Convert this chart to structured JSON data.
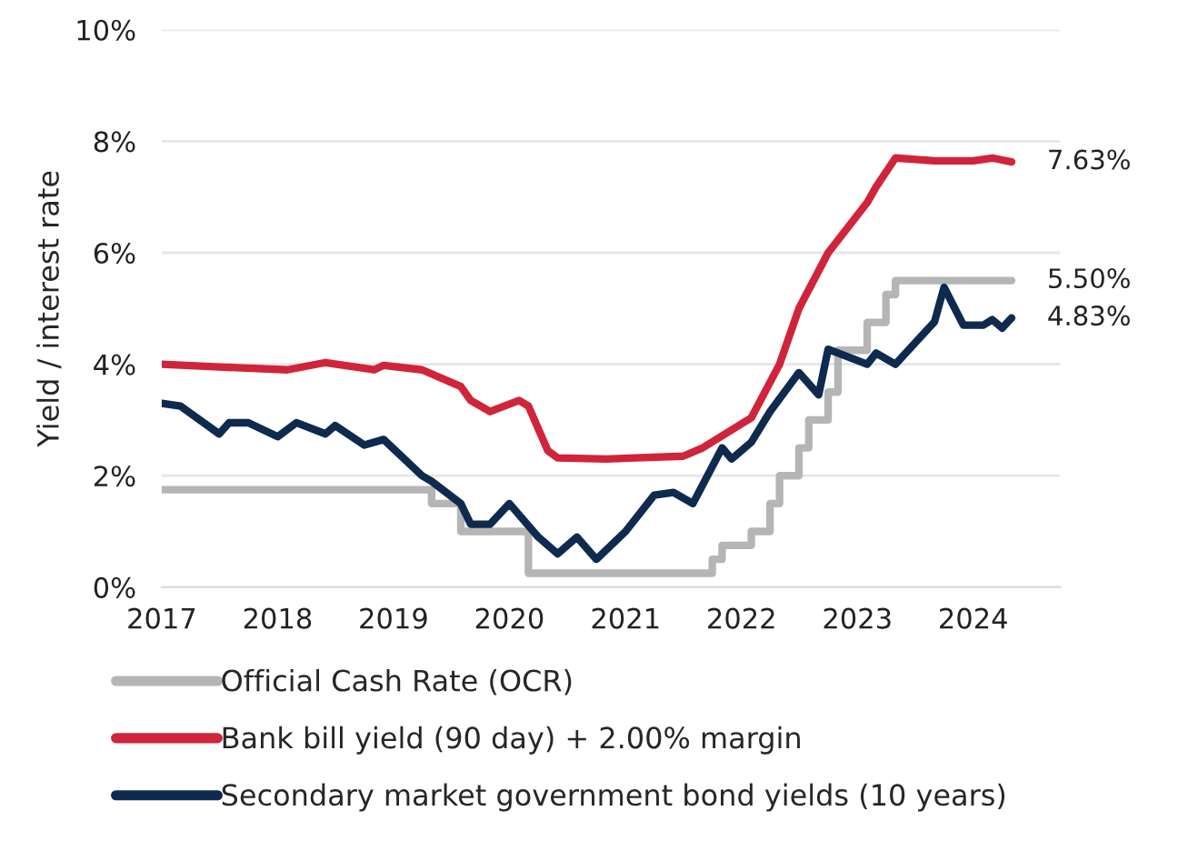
{
  "chart_data": {
    "type": "line",
    "ylabel": "Yield / interest rate",
    "xlim": [
      "2017-01",
      "2024-10"
    ],
    "ylim": [
      0,
      10
    ],
    "xticks": [
      "2017",
      "2018",
      "2019",
      "2020",
      "2021",
      "2022",
      "2023",
      "2024"
    ],
    "yticks": [
      {
        "value": 0,
        "label": "0%"
      },
      {
        "value": 2,
        "label": "2%"
      },
      {
        "value": 4,
        "label": "4%"
      },
      {
        "value": 6,
        "label": "6%"
      },
      {
        "value": 8,
        "label": "8%"
      },
      {
        "value": 10,
        "label": "10%"
      }
    ],
    "grid": "y",
    "legend": "bottom",
    "line_style": "solid",
    "marker": "none",
    "series": [
      {
        "name": "Official Cash Rate (OCR)",
        "type": "step",
        "color": "#b5b5b5",
        "x": [
          "2017-01",
          "2019-05",
          "2019-08",
          "2020-03",
          "2021-10",
          "2021-11",
          "2022-02",
          "2022-04",
          "2022-05",
          "2022-07",
          "2022-08",
          "2022-10",
          "2022-11",
          "2023-02",
          "2023-04",
          "2023-05",
          "2024-05"
        ],
        "values": [
          1.75,
          1.5,
          1.0,
          0.25,
          0.5,
          0.75,
          1.0,
          1.5,
          2.0,
          2.5,
          3.0,
          3.5,
          4.25,
          4.75,
          5.25,
          5.5,
          5.5
        ]
      },
      {
        "name": "Bank bill yield (90 day) + 2.00% margin",
        "color": "#d0243a",
        "x": [
          "2017-01",
          "2017-07",
          "2018-02",
          "2018-06",
          "2018-11",
          "2018-12",
          "2019-04",
          "2019-08",
          "2019-09",
          "2019-11",
          "2020-02",
          "2020-03",
          "2020-05",
          "2020-06",
          "2020-11",
          "2021-02",
          "2021-07",
          "2021-09",
          "2022-02",
          "2022-05",
          "2022-07",
          "2022-10",
          "2023-02",
          "2023-03",
          "2023-05",
          "2023-09",
          "2024-01",
          "2024-03",
          "2024-05"
        ],
        "values": [
          4.0,
          3.95,
          3.9,
          4.03,
          3.9,
          3.98,
          3.9,
          3.6,
          3.35,
          3.15,
          3.35,
          3.25,
          2.45,
          2.32,
          2.3,
          2.32,
          2.35,
          2.5,
          3.04,
          4.0,
          5.0,
          6.0,
          6.9,
          7.18,
          7.7,
          7.65,
          7.65,
          7.7,
          7.63
        ]
      },
      {
        "name": "Secondary market government bond yields (10 years)",
        "color": "#0e2a4f",
        "x": [
          "2017-01",
          "2017-03",
          "2017-07",
          "2017-08",
          "2017-10",
          "2018-01",
          "2018-03",
          "2018-06",
          "2018-07",
          "2018-10",
          "2018-12",
          "2019-04",
          "2019-05",
          "2019-08",
          "2019-09",
          "2019-11",
          "2020-01",
          "2020-04",
          "2020-06",
          "2020-08",
          "2020-10",
          "2021-01",
          "2021-04",
          "2021-06",
          "2021-08",
          "2021-11",
          "2021-12",
          "2022-02",
          "2022-04",
          "2022-07",
          "2022-09",
          "2022-10",
          "2023-02",
          "2023-03",
          "2023-05",
          "2023-09",
          "2023-10",
          "2023-12",
          "2024-02",
          "2024-03",
          "2024-04",
          "2024-05"
        ],
        "values": [
          3.3,
          3.25,
          2.75,
          2.95,
          2.95,
          2.7,
          2.95,
          2.75,
          2.9,
          2.55,
          2.65,
          2.0,
          1.9,
          1.5,
          1.13,
          1.13,
          1.5,
          0.9,
          0.6,
          0.9,
          0.5,
          1.0,
          1.65,
          1.7,
          1.5,
          2.5,
          2.3,
          2.6,
          3.15,
          3.85,
          3.45,
          4.27,
          4.0,
          4.2,
          4.0,
          4.76,
          5.38,
          4.7,
          4.7,
          4.8,
          4.65,
          4.83
        ]
      }
    ],
    "annotations": [
      {
        "text": "7.63%",
        "x": "2024-05",
        "y": 7.63
      },
      {
        "text": "5.50%",
        "x": "2024-05",
        "y": 5.5
      },
      {
        "text": "4.83%",
        "x": "2024-05",
        "y": 4.83
      }
    ]
  }
}
